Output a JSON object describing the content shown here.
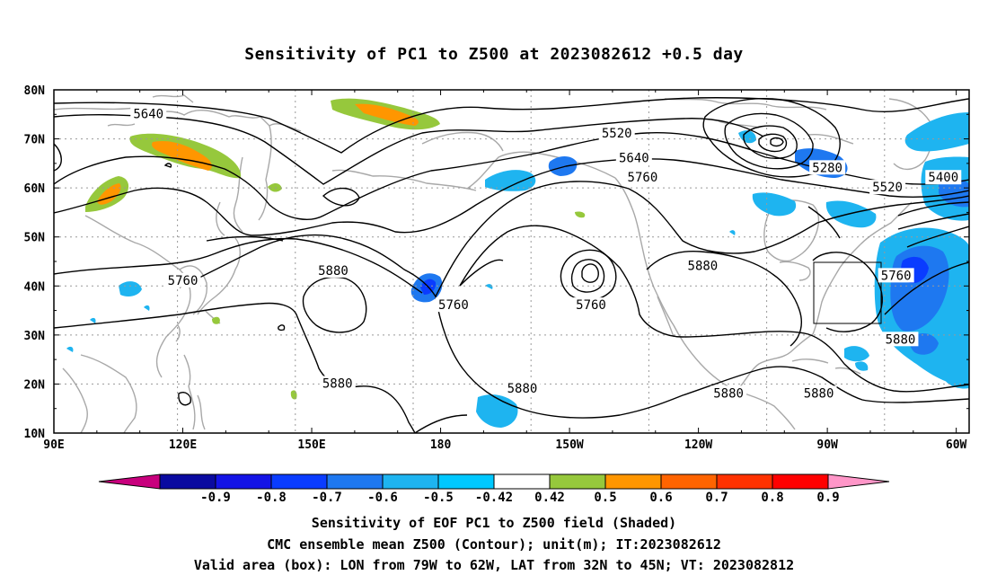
{
  "title": "Sensitivity of PC1 to Z500 at 2023082612 +0.5 day",
  "lat_labels": [
    "80N",
    "70N",
    "60N",
    "50N",
    "40N",
    "30N",
    "20N",
    "10N"
  ],
  "lon_labels": [
    "90E",
    "120E",
    "150E",
    "180",
    "150W",
    "120W",
    "90W",
    "60W"
  ],
  "contour_labels": [
    {
      "text": "5640",
      "lon": 112,
      "lat": 75
    },
    {
      "text": "5520",
      "lon": -139,
      "lat": 71
    },
    {
      "text": "5640",
      "lon": -135,
      "lat": 66
    },
    {
      "text": "5760",
      "lon": -133,
      "lat": 62
    },
    {
      "text": "5280",
      "lon": -90,
      "lat": 64
    },
    {
      "text": "5400",
      "lon": -63,
      "lat": 62
    },
    {
      "text": "5520",
      "lon": -76,
      "lat": 60
    },
    {
      "text": "5760",
      "lon": 120,
      "lat": 41
    },
    {
      "text": "5880",
      "lon": 155,
      "lat": 43
    },
    {
      "text": "5760",
      "lon": -177,
      "lat": 36
    },
    {
      "text": "5760",
      "lon": -145,
      "lat": 36
    },
    {
      "text": "5880",
      "lon": -119,
      "lat": 44
    },
    {
      "text": "5760",
      "lon": -74,
      "lat": 42
    },
    {
      "text": "5880",
      "lon": -73,
      "lat": 29
    },
    {
      "text": "5880",
      "lon": 156,
      "lat": 20
    },
    {
      "text": "5880",
      "lon": -161,
      "lat": 19
    },
    {
      "text": "5880",
      "lon": -113,
      "lat": 18
    },
    {
      "text": "5880",
      "lon": -92,
      "lat": 18
    }
  ],
  "valid_area": {
    "lon_min": -79,
    "lon_max": -62,
    "lat_min": 32,
    "lat_max": 45
  },
  "colorbar": {
    "labels": [
      "-0.9",
      "-0.8",
      "-0.7",
      "-0.6",
      "-0.5",
      "-0.42",
      "0.42",
      "0.5",
      "0.6",
      "0.7",
      "0.8",
      "0.9"
    ],
    "colors": [
      "#c8007d",
      "#0a0aa0",
      "#1414e6",
      "#0a3cff",
      "#1e78f0",
      "#1eb4f0",
      "#00c8ff",
      "#ffffff",
      "#96c83c",
      "#ff9600",
      "#ff6400",
      "#ff3200",
      "#ff0000",
      "#ff96c8"
    ]
  },
  "captions": [
    "Sensitivity of EOF PC1 to Z500 field (Shaded)",
    "CMC ensemble mean Z500 (Contour); unit(m); IT:2023082612",
    "Valid area (box): LON from 79W to 62W, LAT from 32N to 45N; VT: 2023082812"
  ]
}
